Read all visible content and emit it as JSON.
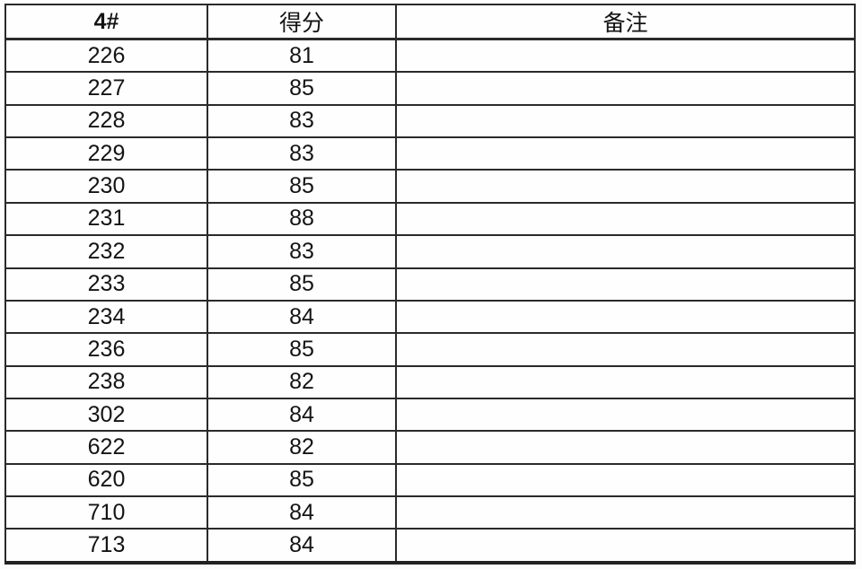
{
  "table": {
    "columns": [
      {
        "key": "id",
        "label": "4#"
      },
      {
        "key": "score",
        "label": "得分"
      },
      {
        "key": "remark",
        "label": "备注"
      }
    ],
    "rows": [
      {
        "id": "226",
        "score": "81",
        "remark": ""
      },
      {
        "id": "227",
        "score": "85",
        "remark": ""
      },
      {
        "id": "228",
        "score": "83",
        "remark": ""
      },
      {
        "id": "229",
        "score": "83",
        "remark": ""
      },
      {
        "id": "230",
        "score": "85",
        "remark": ""
      },
      {
        "id": "231",
        "score": "88",
        "remark": ""
      },
      {
        "id": "232",
        "score": "83",
        "remark": ""
      },
      {
        "id": "233",
        "score": "85",
        "remark": ""
      },
      {
        "id": "234",
        "score": "84",
        "remark": ""
      },
      {
        "id": "236",
        "score": "85",
        "remark": ""
      },
      {
        "id": "238",
        "score": "82",
        "remark": ""
      },
      {
        "id": "302",
        "score": "84",
        "remark": ""
      },
      {
        "id": "622",
        "score": "82",
        "remark": ""
      },
      {
        "id": "620",
        "score": "85",
        "remark": ""
      },
      {
        "id": "710",
        "score": "84",
        "remark": ""
      },
      {
        "id": "713",
        "score": "84",
        "remark": ""
      }
    ],
    "colors": {
      "border": "#2a2a2a",
      "background": "#fdfdfd",
      "text": "#141414"
    }
  }
}
